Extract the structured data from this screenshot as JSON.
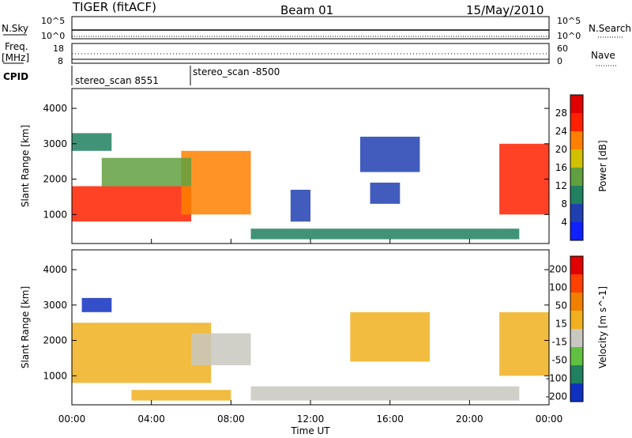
{
  "header": {
    "station": "TIGER (fitACF)",
    "beam": "Beam 01",
    "date": "15/May/2010"
  },
  "sky_panel": {
    "left_label": "N.Sky",
    "right_label": "N.Search",
    "left_ticks": [
      "10^5",
      "10^0"
    ],
    "right_ticks": [
      "10^5",
      "10^0"
    ]
  },
  "freq_panel": {
    "label_line1": "Freq.",
    "label_line2": "[MHz]",
    "left_ticks": [
      "18",
      "8"
    ],
    "right_ticks": [
      "60",
      "0"
    ],
    "right_label": "Nave"
  },
  "cpid": {
    "label": "CPID",
    "segments": [
      {
        "text": "stereo_scan 8551",
        "start_hour": 0
      },
      {
        "text": "stereo_scan -8500",
        "start_hour": 6
      }
    ]
  },
  "chart_data": [
    {
      "type": "heatmap",
      "title": "",
      "xlabel": "Time UT",
      "ylabel": "Slant Range [km]",
      "x_ticks": [
        "00:00",
        "04:00",
        "08:00",
        "12:00",
        "16:00",
        "20:00",
        "00:00"
      ],
      "xlim_hours": [
        0,
        24
      ],
      "y_ticks": [
        1000,
        2000,
        3000,
        4000
      ],
      "ylim": [
        180,
        4560
      ],
      "colorbar": {
        "label": "Power [dB]",
        "ticks": [
          4,
          8,
          12,
          16,
          20,
          24,
          28
        ],
        "range": [
          0,
          32
        ],
        "colors": [
          "#1020ff",
          "#2040b0",
          "#208060",
          "#60a040",
          "#d0c000",
          "#ff8000",
          "#ff2000",
          "#e00000"
        ]
      },
      "regions": [
        {
          "t0": 0.0,
          "t1": 6.0,
          "r0": 800,
          "r1": 1800,
          "level": 26
        },
        {
          "t0": 5.5,
          "t1": 9.0,
          "r0": 1000,
          "r1": 2800,
          "level": 22
        },
        {
          "t0": 1.5,
          "t1": 6.0,
          "r0": 1800,
          "r1": 2600,
          "level": 14
        },
        {
          "t0": 0.0,
          "t1": 2.0,
          "r0": 2800,
          "r1": 3300,
          "level": 10
        },
        {
          "t0": 9.0,
          "t1": 22.5,
          "r0": 300,
          "r1": 600,
          "level": 8
        },
        {
          "t0": 11.0,
          "t1": 12.0,
          "r0": 800,
          "r1": 1700,
          "level": 6
        },
        {
          "t0": 14.5,
          "t1": 17.5,
          "r0": 2200,
          "r1": 3200,
          "level": 5
        },
        {
          "t0": 15.0,
          "t1": 16.5,
          "r0": 1300,
          "r1": 1900,
          "level": 4
        },
        {
          "t0": 21.5,
          "t1": 24.0,
          "r0": 1000,
          "r1": 3000,
          "level": 24
        }
      ]
    },
    {
      "type": "heatmap",
      "title": "",
      "xlabel": "Time UT",
      "ylabel": "Slant Range [km]",
      "x_ticks": [
        "00:00",
        "04:00",
        "08:00",
        "12:00",
        "16:00",
        "20:00",
        "00:00"
      ],
      "xlim_hours": [
        0,
        24
      ],
      "y_ticks": [
        1000,
        2000,
        3000,
        4000
      ],
      "ylim": [
        180,
        4560
      ],
      "colorbar": {
        "label": "Velocity [m s^-1]",
        "ticks": [
          200,
          100,
          50,
          15,
          -15,
          -50,
          -100,
          -200
        ],
        "range": [
          -250,
          250
        ],
        "colors": [
          "#1030c0",
          "#208060",
          "#60c040",
          "#c8c8c0",
          "#f0b020",
          "#f08000",
          "#ff4000",
          "#e00000"
        ]
      },
      "regions": [
        {
          "t0": 0.0,
          "t1": 7.0,
          "r0": 800,
          "r1": 2500,
          "level": 0
        },
        {
          "t0": 0.5,
          "t1": 2.0,
          "r0": 2800,
          "r1": 3200,
          "level": -200
        },
        {
          "t0": 6.0,
          "t1": 9.0,
          "r0": 1300,
          "r1": 2200,
          "level": -40
        },
        {
          "t0": 9.0,
          "t1": 22.5,
          "r0": 300,
          "r1": 700,
          "level": -30
        },
        {
          "t0": 14.0,
          "t1": 18.0,
          "r0": 1400,
          "r1": 2800,
          "level": 0
        },
        {
          "t0": 21.5,
          "t1": 24.0,
          "r0": 1000,
          "r1": 2800,
          "level": 0
        },
        {
          "t0": 3.0,
          "t1": 8.0,
          "r0": 300,
          "r1": 600,
          "level": 60
        }
      ]
    }
  ]
}
